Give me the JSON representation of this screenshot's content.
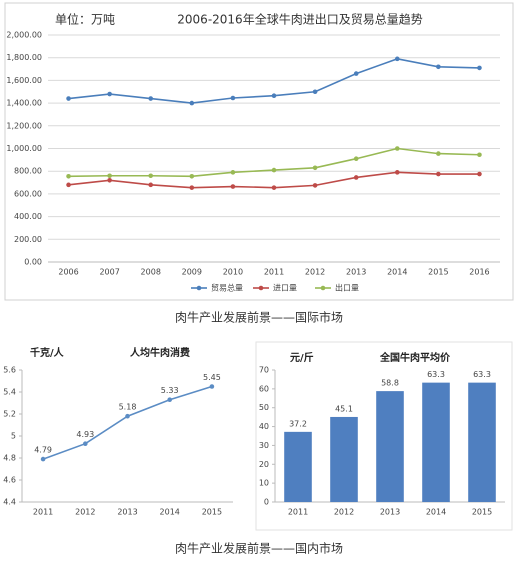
{
  "chart_data": [
    {
      "type": "line",
      "unit_label": "单位：万吨",
      "title": "2006-2016年全球牛肉进出口及贸易总量趋势",
      "categories": [
        "2006",
        "2007",
        "2008",
        "2009",
        "2010",
        "2011",
        "2012",
        "2013",
        "2014",
        "2015",
        "2016"
      ],
      "series": [
        {
          "name": "贸易总量",
          "color": "#4a7ebb",
          "values": [
            1440,
            1480,
            1440,
            1400,
            1445,
            1465,
            1500,
            1660,
            1790,
            1720,
            1710
          ]
        },
        {
          "name": "进口量",
          "color": "#be4b48",
          "values": [
            680,
            720,
            680,
            655,
            665,
            655,
            675,
            745,
            790,
            775,
            775
          ]
        },
        {
          "name": "出口量",
          "color": "#98b954",
          "values": [
            755,
            760,
            760,
            755,
            790,
            810,
            830,
            910,
            1000,
            955,
            945
          ]
        }
      ],
      "ylim": [
        0,
        2000
      ],
      "yticks": [
        {
          "value": 0,
          "label": "0.00"
        },
        {
          "value": 200,
          "label": "200.00"
        },
        {
          "value": 400,
          "label": "400.00"
        },
        {
          "value": 600,
          "label": "600.00"
        },
        {
          "value": 800,
          "label": "800.00"
        },
        {
          "value": 1000,
          "label": "1,000.00"
        },
        {
          "value": 1200,
          "label": "1,200.00"
        },
        {
          "value": 1400,
          "label": "1,400.00"
        },
        {
          "value": 1600,
          "label": "1,600.00"
        },
        {
          "value": 1800,
          "label": "1,800.00"
        },
        {
          "value": 2000,
          "label": "2,000.00"
        }
      ],
      "grid": true,
      "legend": "bottom"
    },
    {
      "type": "line",
      "unit_label": "千克/人",
      "title": "人均牛肉消费",
      "categories": [
        "2011",
        "2012",
        "2013",
        "2014",
        "2015"
      ],
      "series": [
        {
          "color": "#5b8cc4",
          "values": [
            4.79,
            4.93,
            5.18,
            5.33,
            5.45
          ]
        }
      ],
      "ylim": [
        4.4,
        5.6
      ],
      "yticks": [
        4.4,
        4.6,
        4.8,
        5,
        5.2,
        5.4,
        5.6
      ],
      "grid": false,
      "data_labels": true
    },
    {
      "type": "bar",
      "unit_label": "元/斤",
      "title": "全国牛肉平均价",
      "categories": [
        "2011",
        "2012",
        "2013",
        "2014",
        "2015"
      ],
      "series": [
        {
          "color": "#4f7fc0",
          "values": [
            37.2,
            45.1,
            58.8,
            63.3,
            63.3
          ]
        }
      ],
      "ylim": [
        0,
        70
      ],
      "yticks": [
        0,
        10,
        20,
        30,
        40,
        50,
        60,
        70
      ],
      "grid": false,
      "data_labels": true
    }
  ],
  "captions": [
    "肉牛产业发展前景——国际市场",
    "肉牛产业发展前景——国内市场"
  ]
}
